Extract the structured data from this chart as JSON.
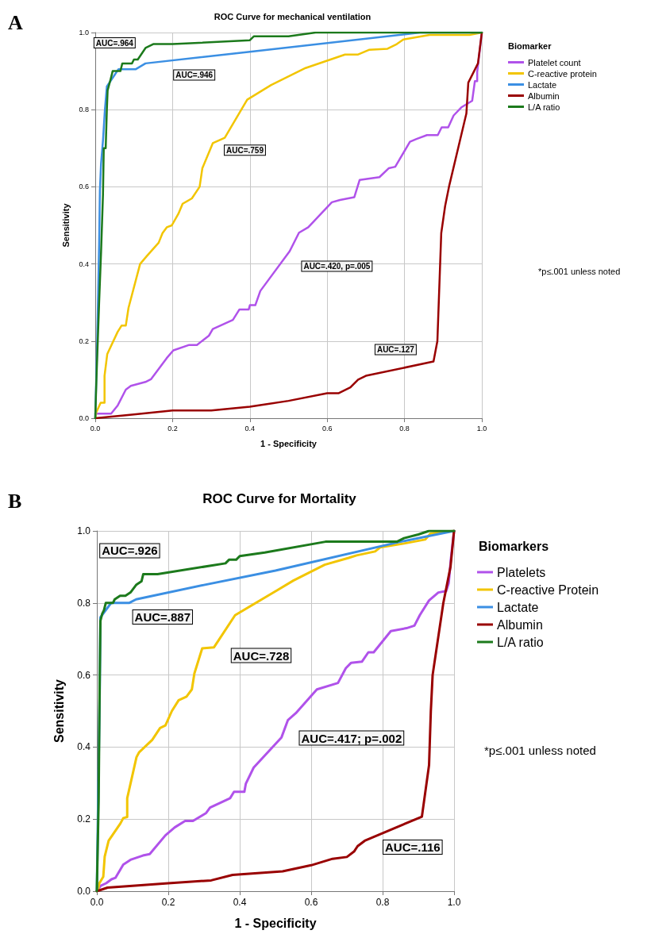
{
  "chart_data": [
    {
      "type": "line",
      "title": "ROC Curve for mechanical ventilation",
      "xlabel": "1 - Specificity",
      "ylabel": "Sensitivity",
      "legend_title": "Biomarker",
      "legend": "right",
      "grid": true,
      "marker": "none",
      "line_style": "solid",
      "xlim": [
        0,
        1
      ],
      "ylim": [
        0,
        1
      ],
      "xticks": [
        {
          "value": 0,
          "label": "0.0"
        },
        {
          "value": 0.2,
          "label": "0.2"
        },
        {
          "value": 0.4,
          "label": "0.4"
        },
        {
          "value": 0.6,
          "label": "0.6"
        },
        {
          "value": 0.8,
          "label": "0.8"
        },
        {
          "value": 1,
          "label": "1.0"
        }
      ],
      "yticks": [
        {
          "value": 0,
          "label": "0.0"
        },
        {
          "value": 0.2,
          "label": "0.2"
        },
        {
          "value": 0.4,
          "label": "0.4"
        },
        {
          "value": 0.6,
          "label": "0.6"
        },
        {
          "value": 0.8,
          "label": "0.8"
        },
        {
          "value": 1,
          "label": "1.0"
        }
      ],
      "annotations": [
        "A",
        "*p≤.001 unless noted",
        "AUC=.964",
        "AUC=.946",
        "AUC=.759",
        "AUC=.420, p=.005",
        "AUC=.127"
      ],
      "series": [
        {
          "name": "Platelet count",
          "color": "#b052ea",
          "x": [
            0,
            0.041,
            0.058,
            0.079,
            0.092,
            0.13,
            0.144,
            0.185,
            0.202,
            0.243,
            0.263,
            0.294,
            0.304,
            0.356,
            0.373,
            0.397,
            0.4,
            0.414,
            0.427,
            0.503,
            0.527,
            0.551,
            0.612,
            0.633,
            0.67,
            0.684,
            0.735,
            0.759,
            0.776,
            0.814,
            0.831,
            0.858,
            0.886,
            0.896,
            0.913,
            0.927,
            0.947,
            0.975,
            0.982,
            0.988,
            0.988,
            1
          ],
          "values": [
            0.012,
            0.012,
            0.033,
            0.074,
            0.084,
            0.094,
            0.101,
            0.156,
            0.176,
            0.19,
            0.19,
            0.214,
            0.231,
            0.255,
            0.282,
            0.282,
            0.293,
            0.293,
            0.33,
            0.433,
            0.481,
            0.495,
            0.56,
            0.566,
            0.573,
            0.618,
            0.625,
            0.648,
            0.652,
            0.717,
            0.724,
            0.734,
            0.734,
            0.754,
            0.754,
            0.785,
            0.806,
            0.823,
            0.874,
            0.874,
            0.898,
            1
          ]
        },
        {
          "name": "C-reactive protein",
          "color": "#f2c500",
          "x": [
            0,
            0.003,
            0.014,
            0.024,
            0.024,
            0.031,
            0.058,
            0.068,
            0.079,
            0.086,
            0.116,
            0.133,
            0.164,
            0.174,
            0.185,
            0.198,
            0.215,
            0.226,
            0.25,
            0.27,
            0.277,
            0.304,
            0.335,
            0.393,
            0.455,
            0.544,
            0.646,
            0.68,
            0.708,
            0.756,
            0.78,
            0.797,
            0.865,
            0.968,
            1
          ],
          "values": [
            0,
            0.016,
            0.04,
            0.04,
            0.11,
            0.166,
            0.224,
            0.24,
            0.24,
            0.286,
            0.4,
            0.42,
            0.455,
            0.48,
            0.495,
            0.5,
            0.53,
            0.556,
            0.57,
            0.6,
            0.648,
            0.713,
            0.727,
            0.826,
            0.864,
            0.908,
            0.943,
            0.943,
            0.955,
            0.958,
            0.97,
            0.982,
            0.994,
            0.994,
            1
          ]
        },
        {
          "name": "Lactate",
          "color": "#3b8fe3",
          "x": [
            0,
            0.005,
            0.01,
            0.012,
            0.015,
            0.02,
            0.025,
            0.03,
            0.05,
            0.06,
            0.105,
            0.13,
            0.4,
            0.84,
            1
          ],
          "values": [
            0,
            0.2,
            0.45,
            0.59,
            0.66,
            0.72,
            0.8,
            0.86,
            0.89,
            0.905,
            0.905,
            0.92,
            0.95,
            1,
            1
          ]
        },
        {
          "name": "Albumin",
          "color": "#990000",
          "x": [
            0,
            0.1,
            0.2,
            0.3,
            0.4,
            0.5,
            0.6,
            0.63,
            0.66,
            0.68,
            0.7,
            0.875,
            0.885,
            0.895,
            0.905,
            0.915,
            0.96,
            0.965,
            0.98,
            0.99,
            1
          ],
          "values": [
            0,
            0.01,
            0.02,
            0.02,
            0.03,
            0.045,
            0.065,
            0.065,
            0.08,
            0.1,
            0.11,
            0.147,
            0.2,
            0.48,
            0.55,
            0.6,
            0.79,
            0.87,
            0.9,
            0.92,
            1
          ]
        },
        {
          "name": "L/A ratio",
          "color": "#1c7a1c",
          "x": [
            0,
            0.003,
            0.01,
            0.015,
            0.02,
            0.022,
            0.027,
            0.03,
            0.032,
            0.04,
            0.045,
            0.065,
            0.07,
            0.095,
            0.1,
            0.11,
            0.13,
            0.15,
            0.2,
            0.4,
            0.41,
            0.5,
            0.57,
            1
          ],
          "values": [
            0,
            0.1,
            0.3,
            0.43,
            0.58,
            0.7,
            0.7,
            0.8,
            0.85,
            0.88,
            0.9,
            0.9,
            0.92,
            0.92,
            0.93,
            0.93,
            0.96,
            0.97,
            0.97,
            0.98,
            0.99,
            0.99,
            1,
            1
          ]
        }
      ]
    },
    {
      "type": "line",
      "title": "ROC Curve for Mortality",
      "xlabel": "1 - Specificity",
      "ylabel": "Sensitivity",
      "legend_title": "Biomarkers",
      "legend": "right",
      "grid": true,
      "marker": "none",
      "line_style": "solid",
      "xlim": [
        0,
        1
      ],
      "ylim": [
        0,
        1
      ],
      "xticks": [
        {
          "value": 0,
          "label": "0.0"
        },
        {
          "value": 0.2,
          "label": "0.2"
        },
        {
          "value": 0.4,
          "label": "0.4"
        },
        {
          "value": 0.6,
          "label": "0.6"
        },
        {
          "value": 0.8,
          "label": "0.8"
        },
        {
          "value": 1,
          "label": "1.0"
        }
      ],
      "yticks": [
        {
          "value": 0,
          "label": "0.0"
        },
        {
          "value": 0.2,
          "label": "0.2"
        },
        {
          "value": 0.4,
          "label": "0.4"
        },
        {
          "value": 0.6,
          "label": "0.6"
        },
        {
          "value": 0.8,
          "label": "0.8"
        },
        {
          "value": 1,
          "label": "1.0"
        }
      ],
      "annotations": [
        "B",
        "*p≤.001 unless noted",
        "AUC=.926",
        "AUC=.887",
        "AUC=.728",
        "AUC=.417; p=.002",
        "AUC=.116"
      ],
      "series": [
        {
          "name": "Platelets",
          "color": "#b052ea",
          "x": [
            0,
            0.011,
            0.026,
            0.041,
            0.052,
            0.074,
            0.096,
            0.129,
            0.148,
            0.192,
            0.218,
            0.247,
            0.269,
            0.306,
            0.317,
            0.373,
            0.384,
            0.413,
            0.417,
            0.439,
            0.517,
            0.535,
            0.557,
            0.616,
            0.675,
            0.697,
            0.712,
            0.742,
            0.76,
            0.775,
            0.823,
            0.867,
            0.889,
            0.904,
            0.93,
            0.956,
            0.978,
            0.985,
            0.991,
            1
          ],
          "values": [
            0,
            0.015,
            0.022,
            0.033,
            0.037,
            0.074,
            0.088,
            0.099,
            0.103,
            0.155,
            0.177,
            0.195,
            0.195,
            0.217,
            0.232,
            0.258,
            0.276,
            0.276,
            0.298,
            0.343,
            0.427,
            0.475,
            0.494,
            0.56,
            0.578,
            0.619,
            0.634,
            0.637,
            0.663,
            0.663,
            0.722,
            0.73,
            0.737,
            0.766,
            0.807,
            0.829,
            0.833,
            0.855,
            0.921,
            1
          ]
        },
        {
          "name": "C-reactive Protein",
          "color": "#f2c500",
          "x": [
            0,
            0.004,
            0.007,
            0.018,
            0.022,
            0.033,
            0.066,
            0.074,
            0.085,
            0.085,
            0.111,
            0.118,
            0.155,
            0.177,
            0.192,
            0.21,
            0.229,
            0.251,
            0.266,
            0.273,
            0.295,
            0.328,
            0.387,
            0.506,
            0.55,
            0.638,
            0.705,
            0.727,
            0.779,
            0.793,
            0.86,
            0.919,
            0.934,
            1
          ],
          "values": [
            0,
            0.007,
            0.022,
            0.04,
            0.096,
            0.14,
            0.188,
            0.203,
            0.206,
            0.258,
            0.372,
            0.385,
            0.42,
            0.453,
            0.46,
            0.5,
            0.53,
            0.54,
            0.56,
            0.604,
            0.674,
            0.677,
            0.766,
            0.836,
            0.862,
            0.906,
            0.925,
            0.932,
            0.943,
            0.954,
            0.965,
            0.976,
            0.993,
            1
          ]
        },
        {
          "name": "Lactate",
          "color": "#3b8fe3",
          "x": [
            0,
            0.008,
            0.01,
            0.025,
            0.04,
            0.09,
            0.11,
            0.3,
            0.5,
            0.85,
            1
          ],
          "values": [
            0,
            0.55,
            0.76,
            0.78,
            0.8,
            0.8,
            0.81,
            0.85,
            0.89,
            0.97,
            1
          ]
        },
        {
          "name": "Albumin",
          "color": "#990000",
          "x": [
            0,
            0.03,
            0.1,
            0.2,
            0.32,
            0.38,
            0.52,
            0.6,
            0.66,
            0.7,
            0.72,
            0.73,
            0.75,
            0.91,
            0.93,
            0.935,
            0.94,
            0.97,
            0.98,
            0.99,
            1
          ],
          "values": [
            0,
            0.01,
            0.015,
            0.022,
            0.03,
            0.045,
            0.055,
            0.072,
            0.09,
            0.095,
            0.11,
            0.125,
            0.14,
            0.207,
            0.35,
            0.5,
            0.6,
            0.8,
            0.85,
            0.9,
            1
          ]
        },
        {
          "name": "L/A ratio",
          "color": "#1c7a1c",
          "x": [
            0,
            0.005,
            0.008,
            0.01,
            0.015,
            0.02,
            0.025,
            0.045,
            0.05,
            0.065,
            0.08,
            0.095,
            0.11,
            0.125,
            0.13,
            0.17,
            0.36,
            0.37,
            0.39,
            0.4,
            0.47,
            0.64,
            0.84,
            0.86,
            0.9,
            0.93,
            1
          ],
          "values": [
            0,
            0.25,
            0.58,
            0.75,
            0.77,
            0.78,
            0.8,
            0.8,
            0.81,
            0.82,
            0.82,
            0.83,
            0.85,
            0.86,
            0.88,
            0.88,
            0.91,
            0.92,
            0.92,
            0.93,
            0.94,
            0.97,
            0.97,
            0.98,
            0.99,
            1,
            1
          ]
        }
      ]
    }
  ]
}
